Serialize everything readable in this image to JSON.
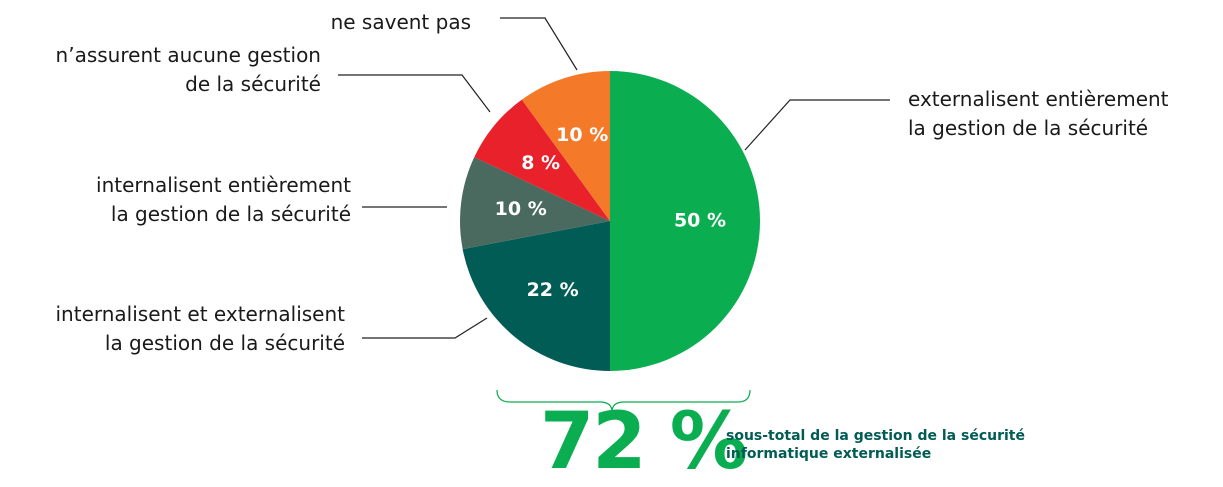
{
  "chart_data": {
    "type": "pie",
    "categories": [
      "externalisent entièrement\nla gestion de la sécurité",
      "internalisent et externalisent\nla gestion de la sécurité",
      "internalisent entièrement\nla gestion de la sécurité",
      "n’assurent aucune gestion\nde la sécurité",
      "ne savent pas"
    ],
    "values": [
      50,
      22,
      10,
      8,
      10
    ],
    "value_labels": [
      "50 %",
      "22 %",
      "10 %",
      "8 %",
      "10 %"
    ],
    "colors": [
      "#0aad4f",
      "#005c55",
      "#4a6a60",
      "#e8212b",
      "#f47a2a"
    ],
    "annotation": {
      "value": 72,
      "label": "72 %",
      "text": "sous-total de la gestion de la sécurité\ninformatique externalisée"
    }
  }
}
